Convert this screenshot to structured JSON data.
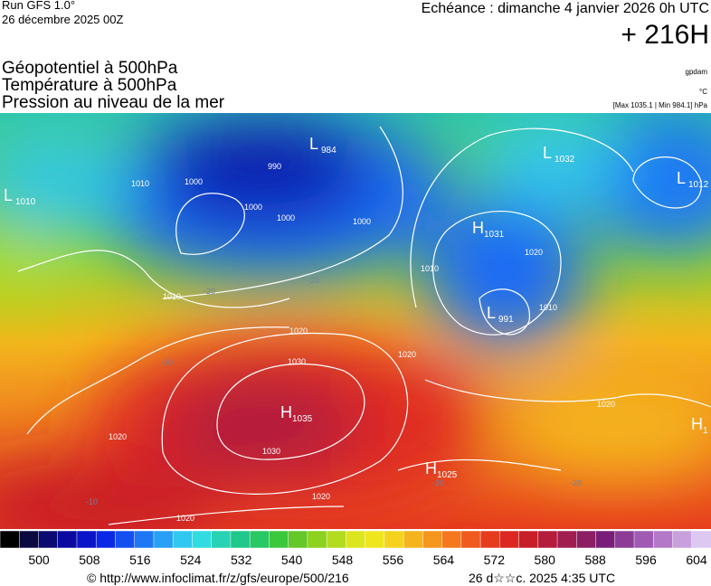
{
  "header": {
    "run": "Run GFS 1.0°",
    "run_date": "26 décembre 2025 00Z",
    "valid": "Echéance : dimanche 4 janvier 2026 0h UTC",
    "lead": "+ 216H"
  },
  "fields": [
    "Géopotentiel à 500hPa",
    "Température à 500hPa",
    "Pression au niveau de la mer"
  ],
  "units": {
    "geopotential": "gpdam",
    "temperature": "°C",
    "pressure": "[Max 1035.1 | Min 984.1] hPa"
  },
  "centers": [
    {
      "symbol": "L",
      "value": "984"
    },
    {
      "symbol": "L",
      "value": "1010"
    },
    {
      "symbol": "L",
      "value": "1032"
    },
    {
      "symbol": "L",
      "value": "1012"
    },
    {
      "symbol": "H",
      "value": "1031"
    },
    {
      "symbol": "L",
      "value": "991"
    },
    {
      "symbol": "H",
      "value": "1035"
    },
    {
      "symbol": "H",
      "value": "1025"
    },
    {
      "symbol": "H",
      "value": "1"
    }
  ],
  "isobars": [
    "990",
    "1000",
    "1000",
    "1000",
    "1000",
    "1010",
    "1010",
    "1010",
    "1020",
    "1020",
    "1030",
    "1030",
    "1020",
    "1020",
    "1020",
    "1010",
    "1020",
    "1020"
  ],
  "isotherms": [
    "-20",
    "-20",
    "-20",
    "-10",
    "-20",
    "-20"
  ],
  "colorbar": {
    "labels": [
      500,
      508,
      516,
      524,
      532,
      540,
      548,
      556,
      564,
      572,
      580,
      588,
      596,
      604
    ],
    "colors": [
      "#000000",
      "#0a0a40",
      "#0a0a70",
      "#0a0aa0",
      "#0a14c8",
      "#0a28e6",
      "#1450f0",
      "#1e78f5",
      "#28a0f5",
      "#30c8f0",
      "#30dce0",
      "#28d2b4",
      "#20c88c",
      "#28c864",
      "#3cc83c",
      "#64c828",
      "#8cd21e",
      "#b4dc1e",
      "#dce61e",
      "#f0e61e",
      "#f5d21e",
      "#f5b41e",
      "#f5961e",
      "#f5781e",
      "#f05a1e",
      "#e63c1e",
      "#dc2820",
      "#c81e28",
      "#b41e3c",
      "#a01e50",
      "#8c1e64",
      "#781e78",
      "#8c3c96",
      "#a05ab4",
      "#b478c8",
      "#c8a0dc",
      "#dcc8f0"
    ]
  },
  "footer": {
    "url": "© http://www.infoclimat.fr/z/gfs/europe/500/216",
    "stamp": "26 d☆☆c. 2025  4:35 UTC"
  }
}
